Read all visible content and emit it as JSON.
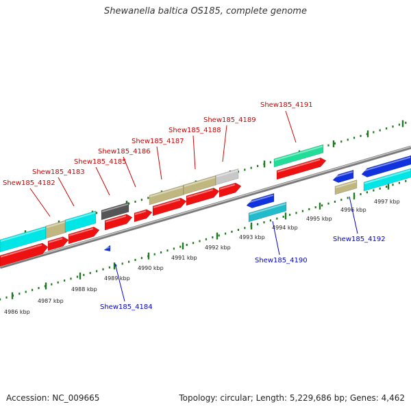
{
  "title": "Shewanella baltica OS185, complete genome",
  "footer": {
    "accession": "Accession: NC_009665",
    "summary": "Topology: circular; Length: 5,229,686 bp; Genes: 4,462"
  },
  "colors": {
    "backbone": "#808080",
    "ticks": "#1f7a1f",
    "forward_label": "#cc0000",
    "reverse_label": "#0000cc"
  },
  "map": {
    "kbp_labels": [
      "4986 kbp",
      "4987 kbp",
      "4988 kbp",
      "4989 kbp",
      "4990 kbp",
      "4991 kbp",
      "4992 kbp",
      "4993 kbp",
      "4994 kbp",
      "4995 kbp",
      "4996 kbp",
      "4997 kbp"
    ],
    "gene_labels": [
      {
        "text": "Shew185_4182",
        "strand": "forward"
      },
      {
        "text": "Shew185_4183",
        "strand": "forward"
      },
      {
        "text": "Shew185_4185",
        "strand": "forward"
      },
      {
        "text": "Shew185_4186",
        "strand": "forward"
      },
      {
        "text": "Shew185_4187",
        "strand": "forward"
      },
      {
        "text": "Shew185_4188",
        "strand": "forward"
      },
      {
        "text": "Shew185_4189",
        "strand": "forward"
      },
      {
        "text": "Shew185_4191",
        "strand": "forward"
      },
      {
        "text": "Shew185_4184",
        "strand": "reverse"
      },
      {
        "text": "Shew185_4190",
        "strand": "reverse"
      },
      {
        "text": "Shew185_4192",
        "strand": "reverse"
      }
    ]
  }
}
